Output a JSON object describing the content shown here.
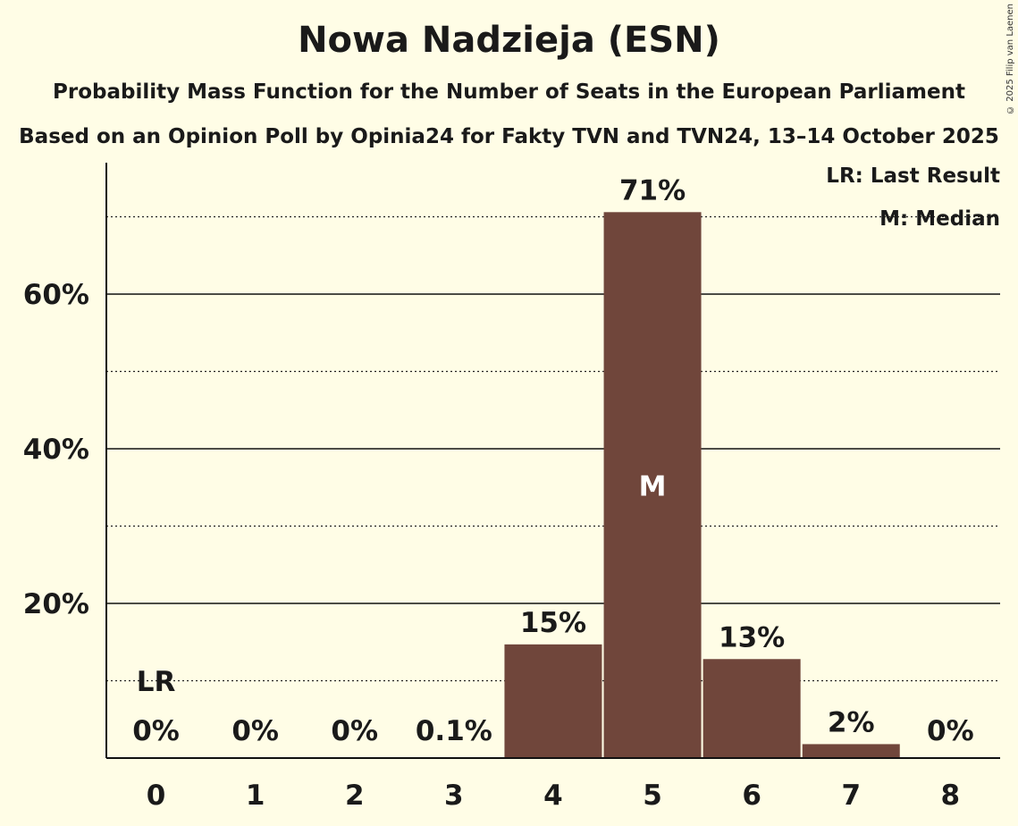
{
  "header": {
    "title": "Nowa Nadzieja (ESN)",
    "subtitle": "Probability Mass Function for the Number of Seats in the European Parliament",
    "subtitle2": "Based on an Opinion Poll by Opinia24 for Fakty TVN and TVN24, 13–14 October 2025",
    "copyright": "© 2025 Filip van Laenen"
  },
  "legend": {
    "lr": "LR: Last Result",
    "m": "M: Median"
  },
  "colors": {
    "background": "#fffde6",
    "bar": "#70463b",
    "text": "#1a1a1a"
  },
  "chart_data": {
    "type": "bar",
    "title": "Nowa Nadzieja (ESN)",
    "subtitle": "Probability Mass Function for the Number of Seats in the European Parliament",
    "xlabel": "",
    "ylabel": "",
    "categories": [
      "0",
      "1",
      "2",
      "3",
      "4",
      "5",
      "6",
      "7",
      "8"
    ],
    "values": [
      0,
      0,
      0,
      0.1,
      14.7,
      70.6,
      12.8,
      1.8,
      0
    ],
    "labels": [
      "0%",
      "0%",
      "0%",
      "0.1%",
      "15%",
      "71%",
      "13%",
      "2%",
      "0%"
    ],
    "ylim": [
      0,
      75
    ],
    "yticks": [
      "20%",
      "40%",
      "60%"
    ],
    "ytick_values": [
      20,
      40,
      60
    ],
    "minor_gridlines": [
      10,
      30,
      50,
      70
    ],
    "grid": true,
    "last_result_seat": 0,
    "last_result_label": "LR",
    "median_seat": 5,
    "median_label": "M",
    "legend_position": "top-right"
  }
}
